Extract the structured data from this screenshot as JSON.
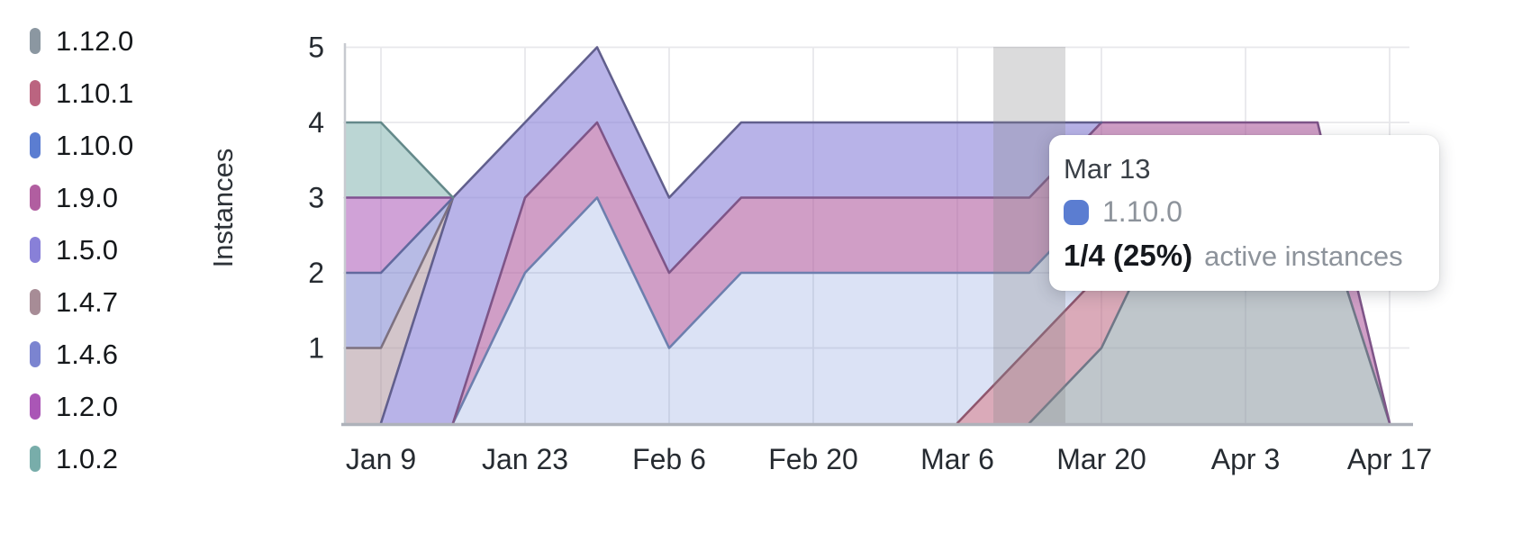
{
  "chart_data": {
    "type": "area",
    "stacked": true,
    "ylabel": "Instances",
    "grid": true,
    "legend_position": "left",
    "x_unit": "days_from_first_point",
    "x_days": [
      0,
      7,
      14,
      21,
      28,
      35,
      42,
      49,
      56,
      63,
      70,
      77,
      84,
      91,
      98,
      105
    ],
    "x_tick_days": [
      7,
      21,
      35,
      49,
      63,
      77,
      91,
      105
    ],
    "x_tick_labels": [
      "Jan 9",
      "Jan 23",
      "Feb 6",
      "Feb 20",
      "Mar 6",
      "Mar 20",
      "Apr 3",
      "Apr 17"
    ],
    "y_ticks": [
      1,
      2,
      3,
      4,
      5
    ],
    "ylim": [
      0,
      5
    ],
    "series": [
      {
        "name": "1.12.0",
        "color": "#8b97a1",
        "fill": "rgba(139,151,161,0.55)",
        "stroke": "#6f7787",
        "values": [
          0,
          0,
          0,
          0,
          0,
          0,
          0,
          0,
          0,
          0,
          0,
          1,
          3,
          3,
          3,
          0
        ]
      },
      {
        "name": "1.10.1",
        "color": "#bb6480",
        "fill": "rgba(187,100,128,0.55)",
        "stroke": "#8f566e",
        "values": [
          0,
          0,
          0,
          0,
          0,
          0,
          0,
          0,
          0,
          0,
          1,
          1,
          0,
          0,
          0,
          0
        ]
      },
      {
        "name": "1.10.0",
        "color": "#5b7dd1",
        "fill": "rgba(91,125,209,0.22)",
        "stroke": "#6d7fae",
        "values": [
          0,
          0,
          0,
          2,
          3,
          1,
          2,
          2,
          2,
          2,
          1,
          1,
          0,
          0,
          0,
          0
        ]
      },
      {
        "name": "1.9.0",
        "color": "#b15ea0",
        "fill": "rgba(177,94,160,0.60)",
        "stroke": "#7e5588",
        "values": [
          0,
          0,
          0,
          1,
          1,
          1,
          1,
          1,
          1,
          1,
          1,
          1,
          1,
          1,
          1,
          0
        ]
      },
      {
        "name": "1.5.0",
        "color": "#8880d8",
        "fill": "rgba(136,128,216,0.60)",
        "stroke": "#615f8d",
        "values": [
          0,
          0,
          3,
          1,
          1,
          1,
          1,
          1,
          1,
          1,
          1,
          0,
          0,
          0,
          0,
          0
        ]
      },
      {
        "name": "1.4.7",
        "color": "#a78c96",
        "fill": "rgba(167,140,150,0.50)",
        "stroke": "#7d7180",
        "values": [
          1,
          1,
          0,
          0,
          0,
          0,
          0,
          0,
          0,
          0,
          0,
          0,
          0,
          0,
          0,
          0
        ]
      },
      {
        "name": "1.4.6",
        "color": "#7b84d0",
        "fill": "rgba(123,132,208,0.55)",
        "stroke": "#62699e",
        "values": [
          1,
          1,
          0,
          0,
          0,
          0,
          0,
          0,
          0,
          0,
          0,
          0,
          0,
          0,
          0,
          0
        ]
      },
      {
        "name": "1.2.0",
        "color": "#aa56b6",
        "fill": "rgba(170,86,182,0.55)",
        "stroke": "#815292",
        "values": [
          1,
          1,
          0,
          0,
          0,
          0,
          0,
          0,
          0,
          0,
          0,
          0,
          0,
          0,
          0,
          0
        ]
      },
      {
        "name": "1.0.2",
        "color": "#78adaa",
        "fill": "rgba(120,173,170,0.50)",
        "stroke": "#64898a",
        "values": [
          1,
          1,
          0,
          0,
          0,
          0,
          0,
          0,
          0,
          0,
          0,
          0,
          0,
          0,
          0,
          0
        ]
      }
    ],
    "highlight": {
      "day": 70,
      "label": "Mar 13",
      "band_color": "rgba(136,136,140,0.30)"
    }
  },
  "tooltip": {
    "title": "Mar 13",
    "series_name": "1.10.0",
    "swatch_color": "#5b7dd1",
    "value_bold": "1/4 (25%)",
    "value_suffix": "active instances"
  }
}
